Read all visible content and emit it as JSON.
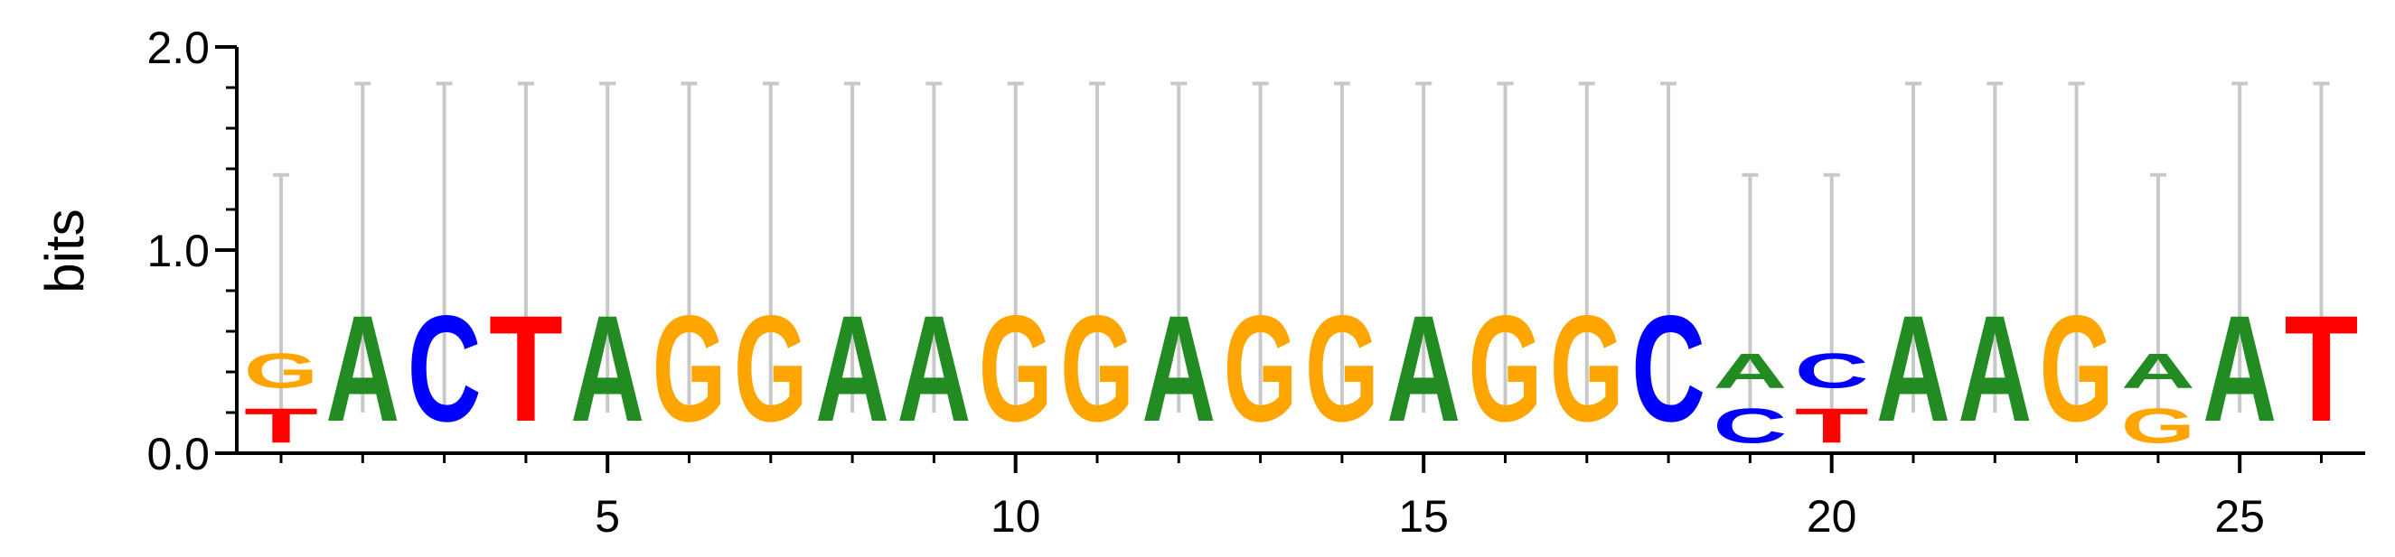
{
  "chart_data": {
    "type": "sequence-logo",
    "ylabel": "bits",
    "ylim": [
      0,
      2.0
    ],
    "y_ticks": [
      "0.0",
      "1.0",
      "2.0"
    ],
    "x_ticks": [
      5,
      10,
      15,
      20,
      25
    ],
    "alphabet_colors": {
      "A": "#228b22",
      "C": "#0000ff",
      "G": "#ffa500",
      "T": "#ff0000"
    },
    "error_bar_color": "#c8c8c8",
    "positions": [
      {
        "pos": 1,
        "error_top": 1.37,
        "stack": [
          {
            "letter": "T",
            "height": 0.27
          },
          {
            "letter": "G",
            "height": 0.27
          }
        ]
      },
      {
        "pos": 2,
        "error_top": 1.82,
        "stack": [
          {
            "letter": "A",
            "height": 0.83
          }
        ]
      },
      {
        "pos": 3,
        "error_top": 1.82,
        "stack": [
          {
            "letter": "C",
            "height": 0.83
          }
        ]
      },
      {
        "pos": 4,
        "error_top": 1.82,
        "stack": [
          {
            "letter": "T",
            "height": 0.83
          }
        ]
      },
      {
        "pos": 5,
        "error_top": 1.82,
        "stack": [
          {
            "letter": "A",
            "height": 0.83
          }
        ]
      },
      {
        "pos": 6,
        "error_top": 1.82,
        "stack": [
          {
            "letter": "G",
            "height": 0.83
          }
        ]
      },
      {
        "pos": 7,
        "error_top": 1.82,
        "stack": [
          {
            "letter": "G",
            "height": 0.83
          }
        ]
      },
      {
        "pos": 8,
        "error_top": 1.82,
        "stack": [
          {
            "letter": "A",
            "height": 0.83
          }
        ]
      },
      {
        "pos": 9,
        "error_top": 1.82,
        "stack": [
          {
            "letter": "A",
            "height": 0.83
          }
        ]
      },
      {
        "pos": 10,
        "error_top": 1.82,
        "stack": [
          {
            "letter": "G",
            "height": 0.83
          }
        ]
      },
      {
        "pos": 11,
        "error_top": 1.82,
        "stack": [
          {
            "letter": "G",
            "height": 0.83
          }
        ]
      },
      {
        "pos": 12,
        "error_top": 1.82,
        "stack": [
          {
            "letter": "A",
            "height": 0.83
          }
        ]
      },
      {
        "pos": 13,
        "error_top": 1.82,
        "stack": [
          {
            "letter": "G",
            "height": 0.83
          }
        ]
      },
      {
        "pos": 14,
        "error_top": 1.82,
        "stack": [
          {
            "letter": "G",
            "height": 0.83
          }
        ]
      },
      {
        "pos": 15,
        "error_top": 1.82,
        "stack": [
          {
            "letter": "A",
            "height": 0.83
          }
        ]
      },
      {
        "pos": 16,
        "error_top": 1.82,
        "stack": [
          {
            "letter": "G",
            "height": 0.83
          }
        ]
      },
      {
        "pos": 17,
        "error_top": 1.82,
        "stack": [
          {
            "letter": "G",
            "height": 0.83
          }
        ]
      },
      {
        "pos": 18,
        "error_top": 1.82,
        "stack": [
          {
            "letter": "C",
            "height": 0.83
          }
        ]
      },
      {
        "pos": 19,
        "error_top": 1.37,
        "stack": [
          {
            "letter": "C",
            "height": 0.27
          },
          {
            "letter": "A",
            "height": 0.27
          }
        ]
      },
      {
        "pos": 20,
        "error_top": 1.37,
        "stack": [
          {
            "letter": "T",
            "height": 0.27
          },
          {
            "letter": "C",
            "height": 0.27
          }
        ]
      },
      {
        "pos": 21,
        "error_top": 1.82,
        "stack": [
          {
            "letter": "A",
            "height": 0.83
          }
        ]
      },
      {
        "pos": 22,
        "error_top": 1.82,
        "stack": [
          {
            "letter": "A",
            "height": 0.83
          }
        ]
      },
      {
        "pos": 23,
        "error_top": 1.82,
        "stack": [
          {
            "letter": "G",
            "height": 0.83
          }
        ]
      },
      {
        "pos": 24,
        "error_top": 1.37,
        "stack": [
          {
            "letter": "G",
            "height": 0.27
          },
          {
            "letter": "A",
            "height": 0.27
          }
        ]
      },
      {
        "pos": 25,
        "error_top": 1.82,
        "stack": [
          {
            "letter": "A",
            "height": 0.83
          }
        ]
      },
      {
        "pos": 26,
        "error_top": 1.82,
        "stack": [
          {
            "letter": "T",
            "height": 0.83
          }
        ]
      }
    ]
  }
}
